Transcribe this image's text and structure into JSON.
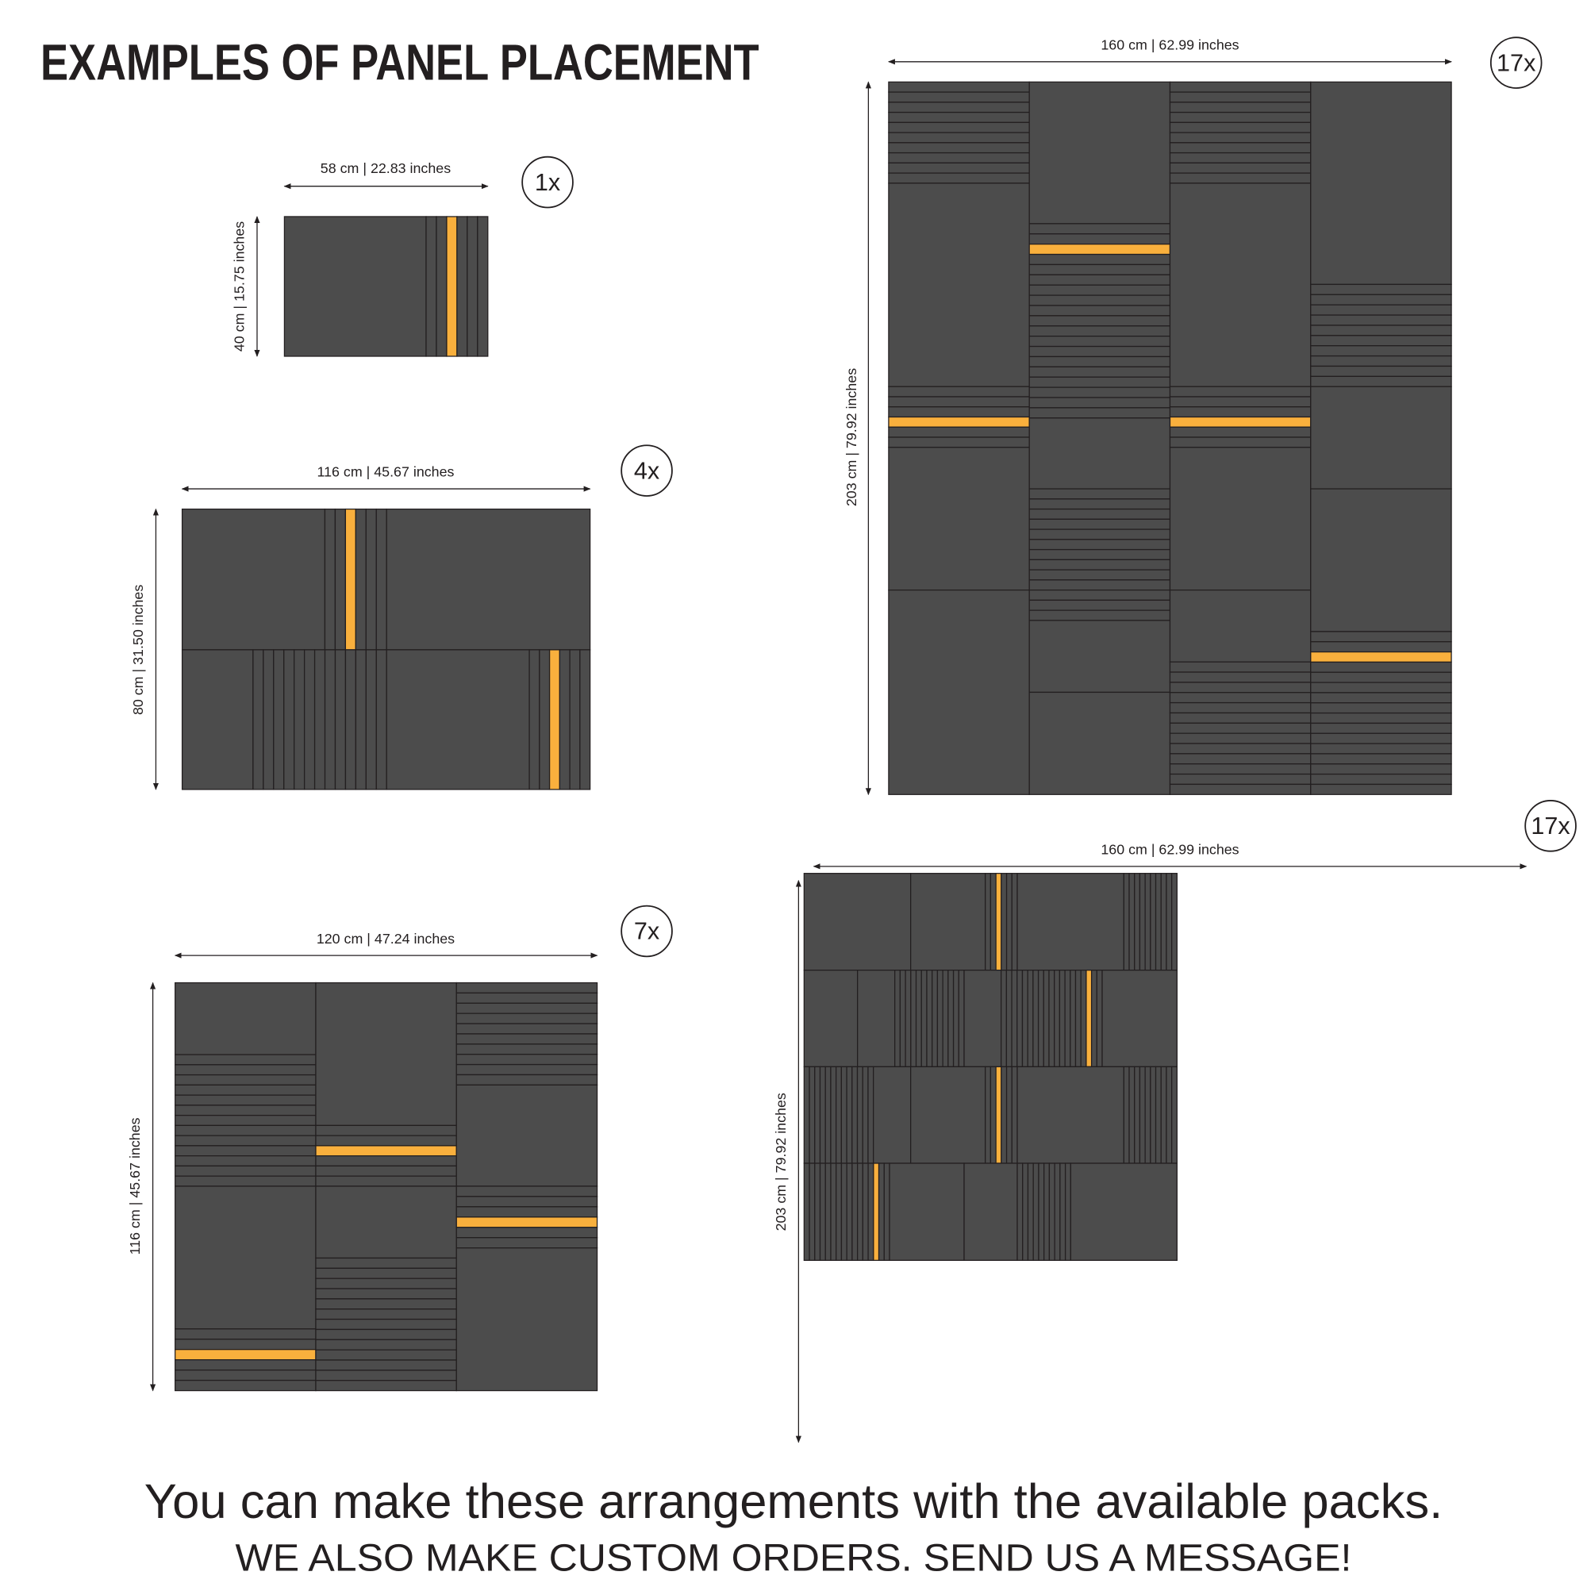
{
  "title": "EXAMPLES OF PANEL PLACEMENT",
  "colors": {
    "panel": "#4c4c4c",
    "outline": "#231f20",
    "accent_slat": "#f9b03d",
    "background": "#ffffff"
  },
  "arrangements": [
    {
      "count_label": "1x",
      "width_label": "58 cm | 22.83 inches",
      "height_label": "40 cm | 15.75 inches"
    },
    {
      "count_label": "4x",
      "width_label": "116 cm | 45.67 inches",
      "height_label": "80 cm | 31.50 inches"
    },
    {
      "count_label": "7x",
      "width_label": "120 cm | 47.24 inches",
      "height_label": "116 cm | 45.67 inches"
    },
    {
      "count_label": "17x",
      "width_label": "160 cm | 62.99 inches",
      "height_label": "203 cm | 79.92 inches"
    },
    {
      "count_label": "17x",
      "width_label": "160 cm | 62.99 inches",
      "height_label": "203 cm | 79.92 inches"
    }
  ],
  "footer": {
    "line1": "You can make these arrangements with the available packs.",
    "line2": "WE ALSO MAKE CUSTOM ORDERS. SEND US A MESSAGE!"
  }
}
